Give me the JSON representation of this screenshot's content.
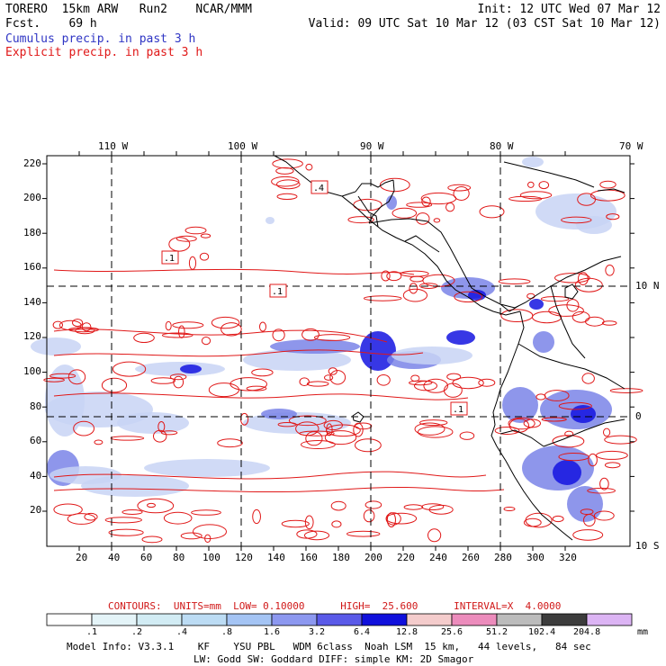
{
  "header": {
    "left_line1": "TORERO  15km ARW   Run2    NCAR/MMM",
    "left_line2": "Fcst.    69 h",
    "right_line1": "Init: 12 UTC Wed 07 Mar 12",
    "right_line2": "Valid: 09 UTC Sat 10 Mar 12 (03 CST Sat 10 Mar 12)",
    "legend_cumulus": "Cumulus precip. in past 3 h",
    "legend_explicit": "Explicit precip. in past 3 h"
  },
  "map": {
    "lon_labels": [
      "110 W",
      "100 W",
      "90 W",
      "80 W",
      "70 W"
    ],
    "left_ticks": [
      "220",
      "200",
      "180",
      "160",
      "140",
      "120",
      "100",
      "80",
      "60",
      "40",
      "20"
    ],
    "bottom_ticks": [
      "20",
      "40",
      "60",
      "80",
      "100",
      "120",
      "140",
      "160",
      "180",
      "200",
      "220",
      "240",
      "260",
      "280",
      "300",
      "320"
    ],
    "lat_labels": [
      "10 N",
      "0",
      "10 S"
    ],
    "box_labels": [
      ".4",
      ".1",
      ".1",
      ".1"
    ],
    "colors": {
      "contour": "#e01818",
      "coast": "#000000",
      "precip_light": "#c8d4f4",
      "precip_mid": "#7a84e8",
      "precip_heavy": "#1414e0"
    }
  },
  "contour_info": "CONTOURS:  UNITS=mm  LOW= 0.10000      HIGH=  25.600      INTERVAL=X  4.0000",
  "colorbar": {
    "labels": [
      ".1",
      ".2",
      ".4",
      ".8",
      "1.6",
      "3.2",
      "6.4",
      "12.8",
      "25.6",
      "51.2",
      "102.4",
      "204.8"
    ],
    "unit": "mm",
    "colors": [
      "#ffffff",
      "#e4f4f8",
      "#d2ecf4",
      "#bcdcf4",
      "#a4c4f4",
      "#8c98f0",
      "#5a5ae8",
      "#1010dc",
      "#f4cccc",
      "#ec8cbc",
      "#bcbcbc",
      "#3c3c3c",
      "#dcb4f4"
    ]
  },
  "footer": {
    "line1": "Model Info: V3.3.1    KF    YSU PBL   WDM 6class  Noah LSM  15 km,   44 levels,   84 sec",
    "line2": "LW: Godd SW: Goddard DIFF: simple KM: 2D Smagor"
  }
}
